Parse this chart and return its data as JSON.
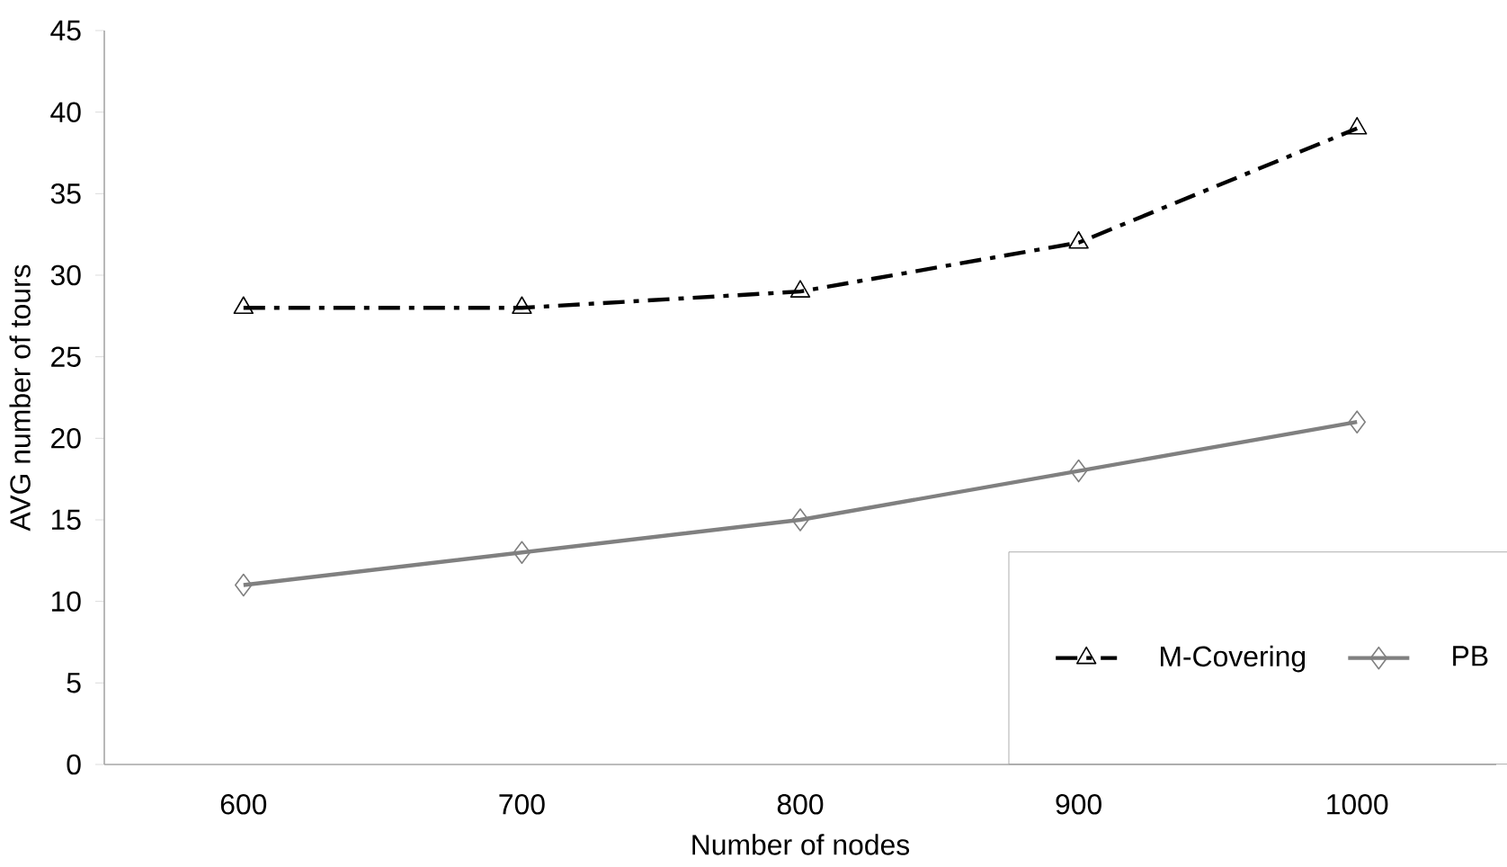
{
  "chart_data": {
    "type": "line",
    "xlabel": "Number of nodes",
    "ylabel": "AVG number of tours",
    "categories": [
      "600",
      "700",
      "800",
      "900",
      "1000"
    ],
    "ylim": [
      0,
      45
    ],
    "yticks": [
      0,
      5,
      10,
      15,
      20,
      25,
      30,
      35,
      40,
      45
    ],
    "legend": "bottom right",
    "series": [
      {
        "name": "M-Covering",
        "color": "#000000",
        "values": [
          28,
          28,
          29,
          32,
          39
        ],
        "marker": "triangle",
        "line_style": "dashed"
      },
      {
        "name": "PB",
        "color": "#808080",
        "values": [
          11,
          13,
          15,
          18,
          21
        ],
        "marker": "diamond",
        "line_style": "solid"
      }
    ]
  }
}
